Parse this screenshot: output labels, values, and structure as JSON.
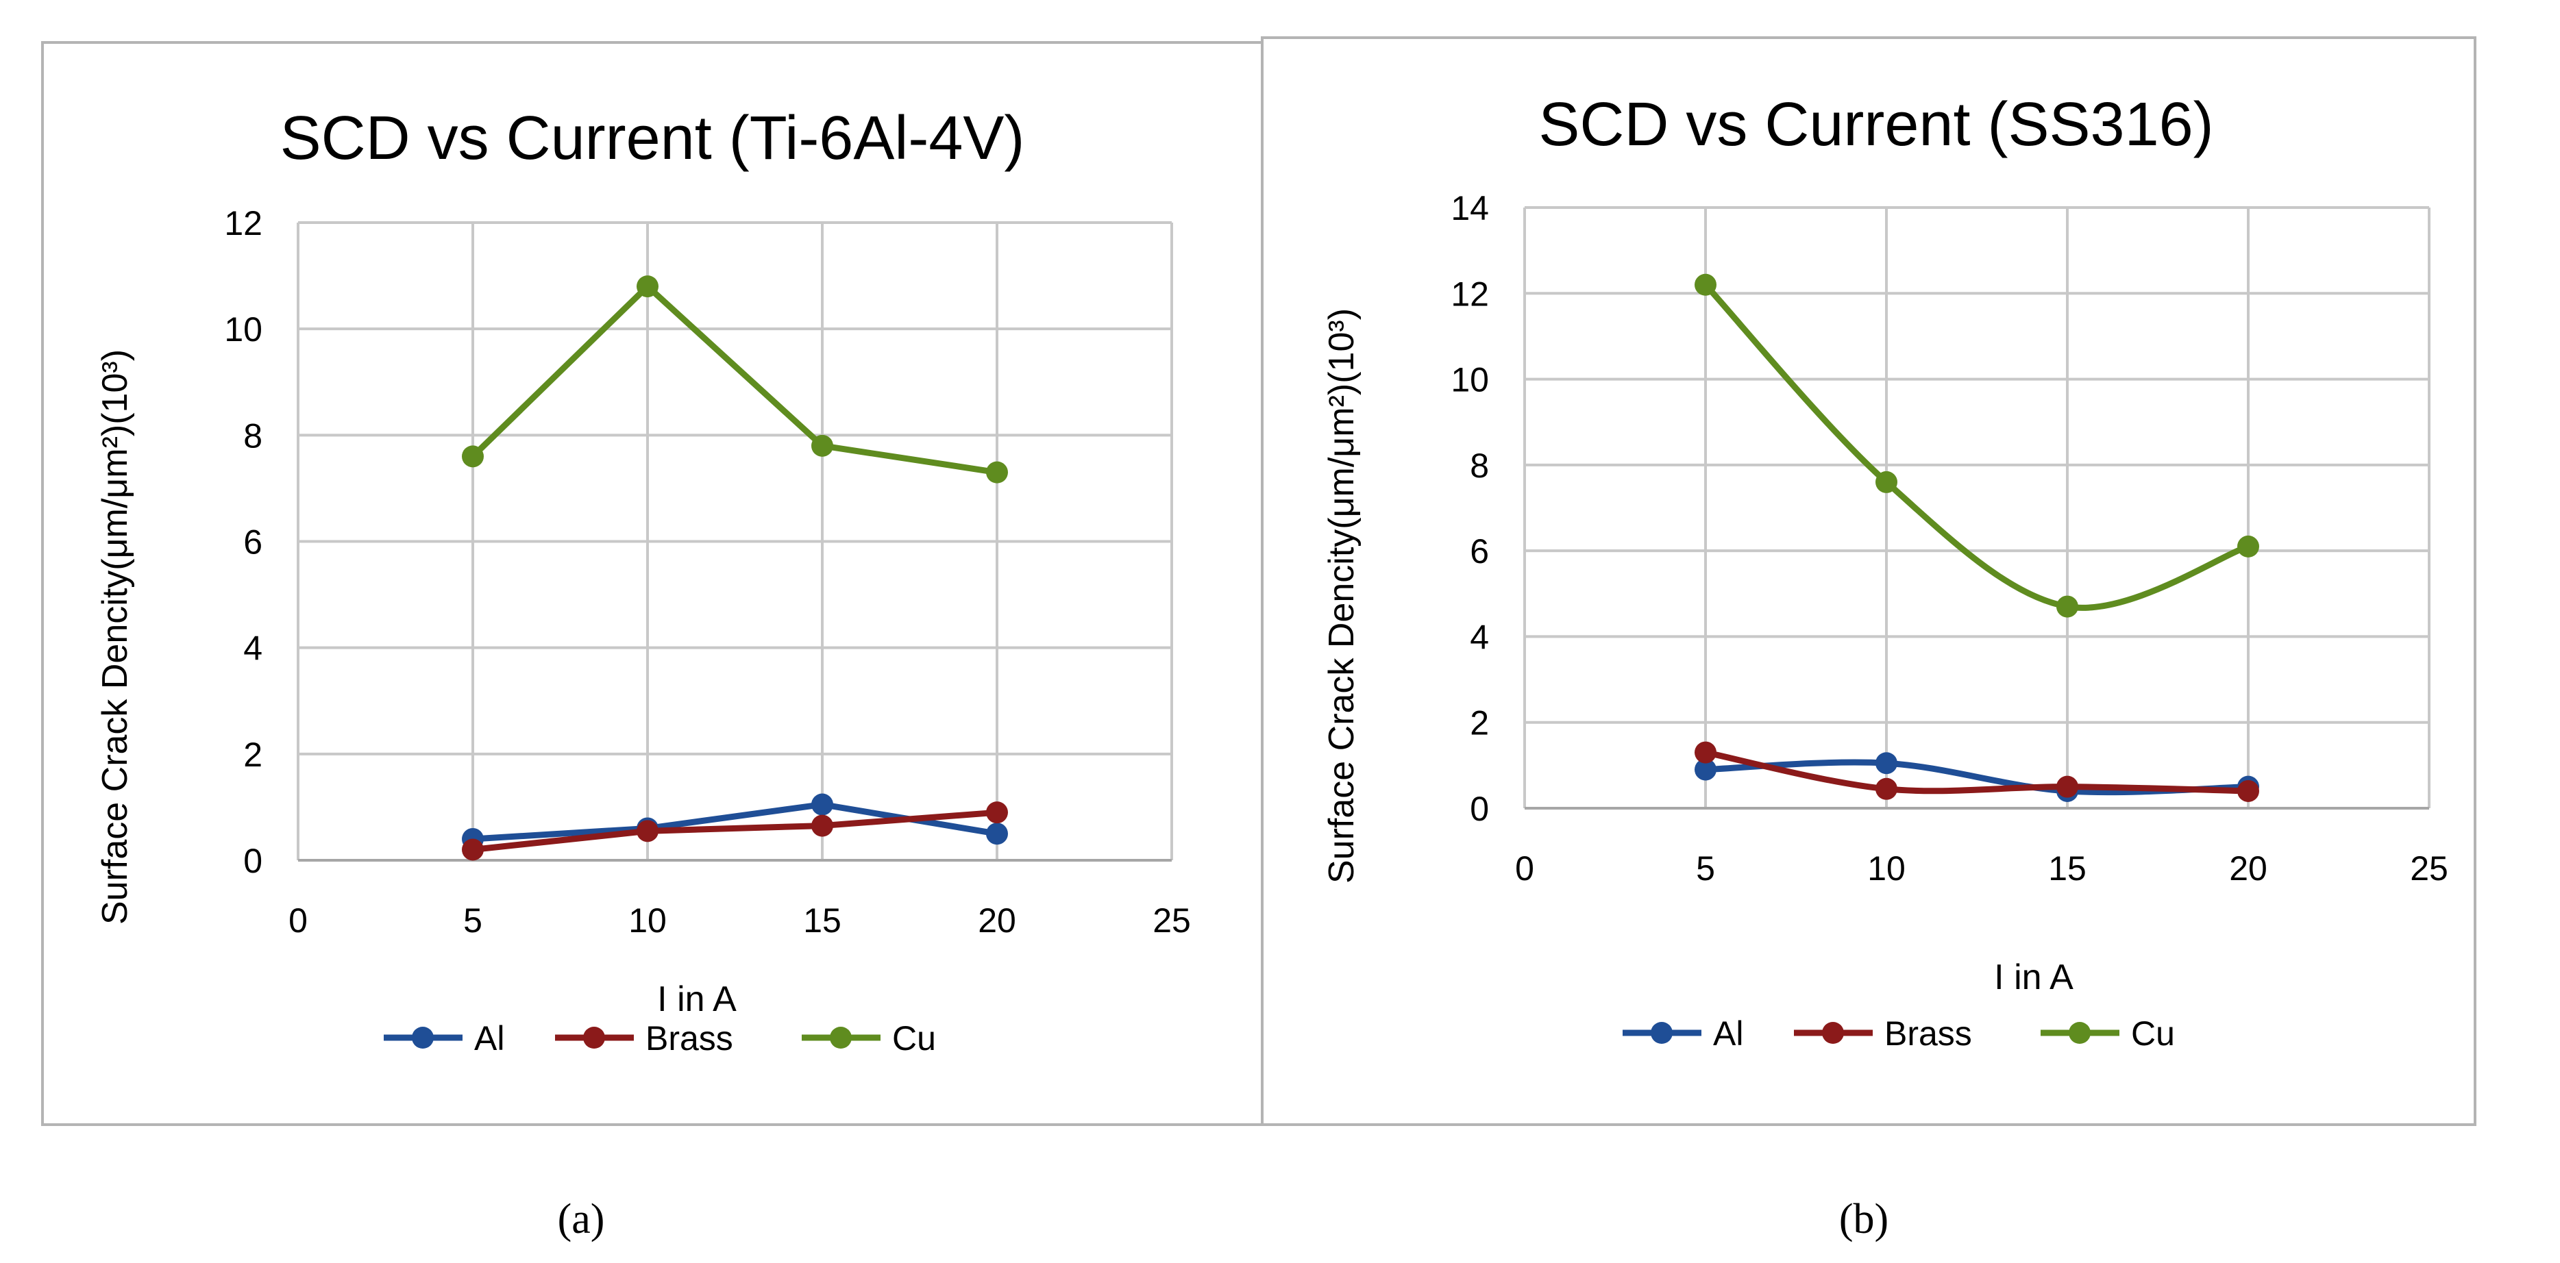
{
  "captions": [
    "(a)",
    "(b)"
  ],
  "legend_order": [
    "Al",
    "Brass",
    "Cu"
  ],
  "colors": {
    "Al": "#1f4e96",
    "Brass": "#8b1a1a",
    "Cu": "#5f8c1f",
    "grid": "#c8c8c8",
    "frame": "#b4b4b4"
  },
  "chart_data": [
    {
      "type": "line",
      "title": "SCD vs Current (Ti-6Al-4V)",
      "xlabel": "I in A",
      "ylabel": "Surface Crack Dencity(μm/μm²)(10³)",
      "xlim": [
        0,
        25
      ],
      "ylim": [
        0,
        12
      ],
      "xticks": [
        0,
        5,
        10,
        15,
        20,
        25
      ],
      "yticks": [
        0,
        2,
        4,
        6,
        8,
        10,
        12
      ],
      "grid": true,
      "legend": "bottom",
      "smooth": false,
      "series": [
        {
          "name": "Al",
          "x": [
            5,
            10,
            15,
            20
          ],
          "y": [
            0.4,
            0.6,
            1.05,
            0.5
          ]
        },
        {
          "name": "Brass",
          "x": [
            5,
            10,
            15,
            20
          ],
          "y": [
            0.2,
            0.55,
            0.65,
            0.9
          ]
        },
        {
          "name": "Cu",
          "x": [
            5,
            10,
            15,
            20
          ],
          "y": [
            7.6,
            10.8,
            7.8,
            7.3
          ]
        }
      ]
    },
    {
      "type": "line",
      "title": "SCD vs Current (SS316)",
      "xlabel": "I in A",
      "ylabel": "Surface Crack Dencity(μm/μm²)(10³)",
      "xlim": [
        0,
        25
      ],
      "ylim": [
        0,
        14
      ],
      "xticks": [
        0,
        5,
        10,
        15,
        20,
        25
      ],
      "yticks": [
        0,
        2,
        4,
        6,
        8,
        10,
        12,
        14
      ],
      "grid": true,
      "legend": "bottom",
      "smooth": true,
      "series": [
        {
          "name": "Al",
          "x": [
            5,
            10,
            15,
            20
          ],
          "y": [
            0.9,
            1.05,
            0.4,
            0.5
          ]
        },
        {
          "name": "Brass",
          "x": [
            5,
            10,
            15,
            20
          ],
          "y": [
            1.3,
            0.45,
            0.5,
            0.4
          ]
        },
        {
          "name": "Cu",
          "x": [
            5,
            10,
            15,
            20
          ],
          "y": [
            12.2,
            7.6,
            4.7,
            6.1
          ]
        }
      ]
    }
  ]
}
